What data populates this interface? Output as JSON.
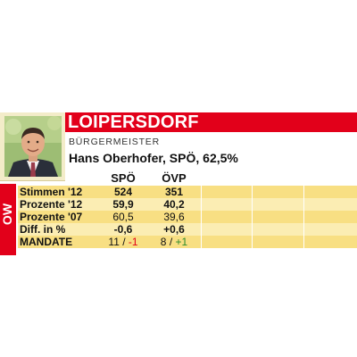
{
  "header": {
    "town": "LOIPERSDORF",
    "role": "BÜRGERMEISTER",
    "mayor": "Hans Oberhofer, SPÖ, 62,5%"
  },
  "side_label": "OW",
  "columns": [
    "SPÖ",
    "ÖVP"
  ],
  "rows": [
    {
      "label": "Stimmen '12",
      "spo": "524",
      "ovp": "351"
    },
    {
      "label": "Prozente '12",
      "spo": "59,9",
      "ovp": "40,2"
    },
    {
      "label": "Prozente '07",
      "spo": "60,5",
      "ovp": "39,6"
    },
    {
      "label": "Diff. in %",
      "spo": "-0,6",
      "ovp": "+0,6"
    }
  ],
  "mandate": {
    "label": "MANDATE",
    "spo_seats": "11",
    "spo_sep": "/",
    "spo_change": "-1",
    "ovp_seats": "8",
    "ovp_sep": "/",
    "ovp_change": "+1"
  },
  "colors": {
    "accent_red": "#e2001a",
    "row_dark": "#f8df83",
    "row_light": "#fbedb3",
    "positive_green": "#2b8a2b"
  }
}
